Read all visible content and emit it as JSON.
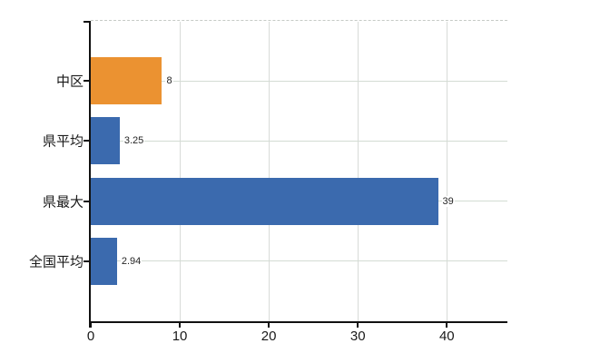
{
  "colors": {
    "background": "#ffffff",
    "bar_blue": "#3b6aae",
    "bar_orange": "#eb9231",
    "grid_vertical": "#d8dbd8",
    "grid_horizontal": "#d3dcd3",
    "plot_top_border": "#c6cbc6",
    "axis": "#111111",
    "tick_label": "#1a1a1a",
    "value_label": "#262626"
  },
  "chart_data": {
    "type": "bar",
    "orientation": "horizontal",
    "title": "",
    "xlabel": "",
    "ylabel": "",
    "categories": [
      "中区",
      "県平均",
      "県最大",
      "全国平均"
    ],
    "series": [
      {
        "name": "",
        "values": [
          8,
          3.25,
          39,
          2.94
        ]
      }
    ],
    "value_labels": [
      "8",
      "3.25",
      "39",
      "2.94"
    ],
    "bar_colors": [
      "#eb9231",
      "#3b6aae",
      "#3b6aae",
      "#3b6aae"
    ],
    "highlighted_category": "中区",
    "xlim": [
      0,
      46.8
    ],
    "x_ticks": [
      "0",
      "10",
      "20",
      "30",
      "40"
    ],
    "x_tick_values": [
      0,
      10,
      20,
      30,
      40
    ],
    "grid": true,
    "grid_on_top_border": "dashed",
    "legend": null
  }
}
